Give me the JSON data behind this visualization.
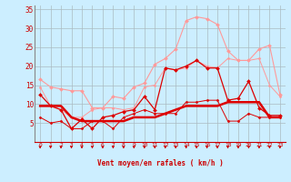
{
  "xlabel": "Vent moyen/en rafales ( km/h )",
  "x": [
    0,
    1,
    2,
    3,
    4,
    5,
    6,
    7,
    8,
    9,
    10,
    11,
    12,
    13,
    14,
    15,
    16,
    17,
    18,
    19,
    20,
    21,
    22,
    23
  ],
  "series": [
    {
      "name": "rafales_max",
      "color": "#ff9999",
      "linewidth": 0.8,
      "marker": "D",
      "markersize": 2.0,
      "values": [
        16.5,
        14.5,
        14.0,
        13.5,
        13.5,
        9.0,
        9.0,
        12.0,
        11.5,
        14.5,
        15.5,
        20.5,
        22.0,
        24.5,
        32.0,
        33.0,
        32.5,
        31.0,
        24.0,
        21.5,
        21.5,
        24.5,
        25.5,
        12.5
      ]
    },
    {
      "name": "vent_moy_max",
      "color": "#ff9999",
      "linewidth": 0.7,
      "marker": "D",
      "markersize": 1.5,
      "values": [
        14.5,
        9.5,
        8.5,
        6.5,
        6.5,
        8.5,
        9.0,
        9.0,
        8.5,
        9.0,
        14.5,
        15.0,
        19.5,
        19.0,
        19.5,
        21.5,
        20.0,
        19.5,
        22.0,
        21.5,
        21.5,
        22.0,
        15.0,
        12.0
      ]
    },
    {
      "name": "vent_moyen",
      "color": "#dd0000",
      "linewidth": 0.9,
      "marker": "D",
      "markersize": 2.0,
      "values": [
        12.5,
        9.5,
        8.5,
        3.5,
        6.0,
        3.5,
        6.5,
        7.0,
        8.0,
        8.5,
        12.0,
        8.5,
        19.5,
        19.0,
        20.0,
        21.5,
        19.5,
        19.5,
        11.0,
        11.5,
        16.0,
        9.0,
        7.0,
        7.0
      ]
    },
    {
      "name": "vent_min_line",
      "color": "#dd0000",
      "linewidth": 1.8,
      "marker": null,
      "markersize": 0,
      "values": [
        9.5,
        9.5,
        9.5,
        6.5,
        5.5,
        5.5,
        5.5,
        5.5,
        5.5,
        6.5,
        6.5,
        6.5,
        7.5,
        8.5,
        9.5,
        9.5,
        9.5,
        9.5,
        10.5,
        10.5,
        10.5,
        10.5,
        6.5,
        6.5
      ]
    },
    {
      "name": "rafales_min",
      "color": "#dd0000",
      "linewidth": 0.7,
      "marker": "D",
      "markersize": 1.5,
      "values": [
        6.5,
        5.0,
        5.5,
        3.5,
        3.5,
        5.5,
        5.5,
        3.5,
        6.5,
        7.5,
        8.5,
        7.5,
        7.5,
        7.5,
        10.5,
        10.5,
        11.0,
        11.0,
        5.5,
        5.5,
        7.5,
        6.5,
        6.5,
        6.5
      ]
    }
  ],
  "ylim": [
    0,
    36
  ],
  "yticks": [
    0,
    5,
    10,
    15,
    20,
    25,
    30,
    35
  ],
  "background_color": "#cceeff",
  "grid_color": "#aabbc0",
  "text_color": "#cc0000",
  "spine_color": "#888888"
}
